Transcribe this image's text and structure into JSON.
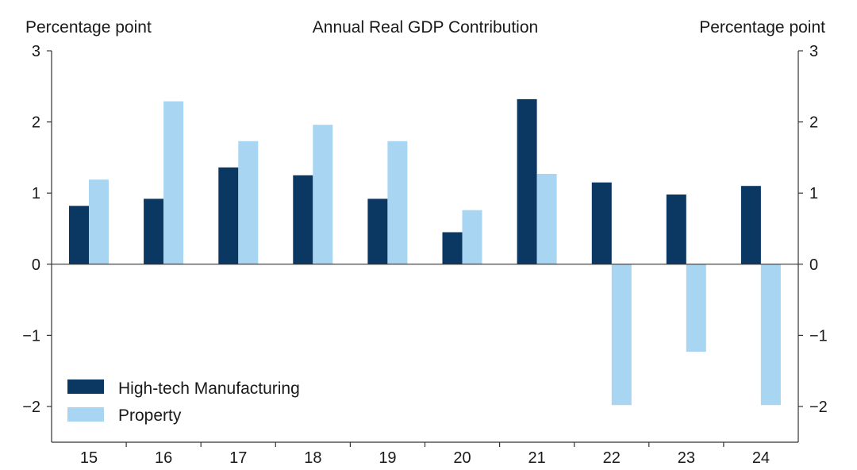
{
  "chart_data": {
    "type": "bar",
    "title": "Annual Real GDP Contribution",
    "ylabel_left": "Percentage point",
    "ylabel_right": "Percentage point",
    "categories": [
      "15",
      "16",
      "17",
      "18",
      "19",
      "20",
      "21",
      "22",
      "23",
      "24"
    ],
    "yticks": [
      "3",
      "2",
      "1",
      "0",
      "−1",
      "−2"
    ],
    "ytick_values": [
      3,
      2,
      1,
      0,
      -1,
      -2
    ],
    "ylim": [
      -2.5,
      3
    ],
    "grid": false,
    "legend_position": "bottom-left",
    "series": [
      {
        "name": "High-tech Manufacturing",
        "color": "#0b3763",
        "values": [
          0.82,
          0.92,
          1.36,
          1.25,
          0.92,
          0.45,
          2.32,
          1.15,
          0.98,
          1.1
        ]
      },
      {
        "name": "Property",
        "color": "#a8d5f2",
        "values": [
          1.19,
          2.29,
          1.73,
          1.96,
          1.73,
          0.76,
          1.27,
          -1.98,
          -1.23,
          -1.98
        ]
      }
    ]
  }
}
